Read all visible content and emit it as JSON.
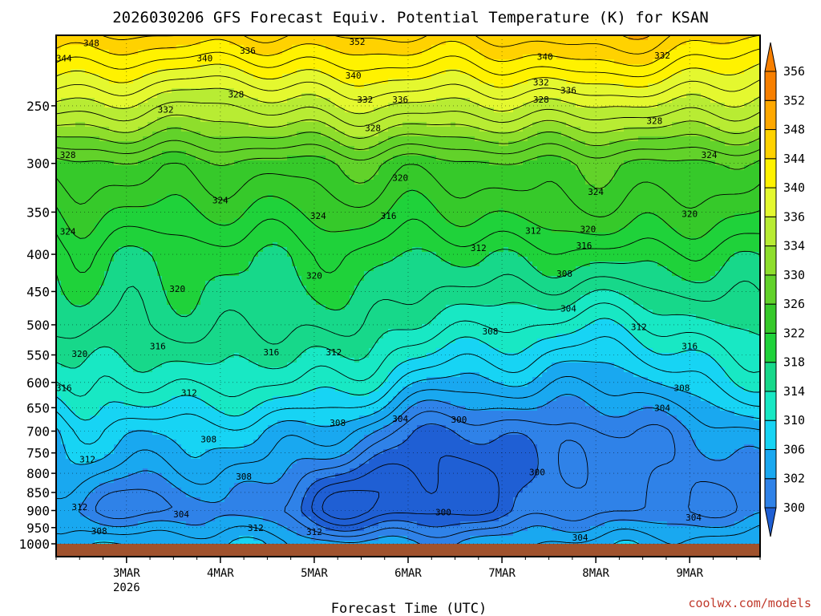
{
  "chart_data": {
    "type": "heatmap",
    "title": "2026030206 GFS Forecast Equiv. Potential Temperature (K) for KSAN",
    "xlabel": "Forecast Time (UTC)",
    "ylabel": "",
    "credit": "coolwx.com/models",
    "x_ticks": [
      {
        "label": "3MAR",
        "sublabel": "2026",
        "x": "2026-03-03T00"
      },
      {
        "label": "4MAR",
        "sublabel": "",
        "x": "2026-03-04T00"
      },
      {
        "label": "5MAR",
        "sublabel": "",
        "x": "2026-03-05T00"
      },
      {
        "label": "6MAR",
        "sublabel": "",
        "x": "2026-03-06T00"
      },
      {
        "label": "7MAR",
        "sublabel": "",
        "x": "2026-03-07T00"
      },
      {
        "label": "8MAR",
        "sublabel": "",
        "x": "2026-03-08T00"
      },
      {
        "label": "9MAR",
        "sublabel": "",
        "x": "2026-03-09T00"
      }
    ],
    "xlim": [
      "2026-03-02T06",
      "2026-03-09T18"
    ],
    "y_ticks": [
      250,
      300,
      350,
      400,
      450,
      500,
      550,
      600,
      650,
      700,
      750,
      800,
      850,
      900,
      950,
      1000
    ],
    "ylim": [
      200,
      1000
    ],
    "y_scale": "log",
    "colorbar": {
      "levels": [
        300,
        302,
        306,
        310,
        314,
        318,
        322,
        326,
        330,
        334,
        336,
        340,
        344,
        348,
        352,
        356
      ],
      "colors": [
        "#1f5fd4",
        "#2f82e8",
        "#19a8f0",
        "#17d4f4",
        "#18e8c4",
        "#17d88a",
        "#1fd23a",
        "#36c92a",
        "#62d22a",
        "#8ede2c",
        "#b8ec33",
        "#e4f82f",
        "#fff200",
        "#ffd200",
        "#ffa800",
        "#f77f00"
      ]
    },
    "contour_labels": [
      {
        "text": "348",
        "x": "2026-03-02T15",
        "p": 205
      },
      {
        "text": "344",
        "x": "2026-03-02T08",
        "p": 215
      },
      {
        "text": "340",
        "x": "2026-03-03T20",
        "p": 215
      },
      {
        "text": "336",
        "x": "2026-03-04T07",
        "p": 210
      },
      {
        "text": "352",
        "x": "2026-03-05T11",
        "p": 204
      },
      {
        "text": "340",
        "x": "2026-03-05T10",
        "p": 227
      },
      {
        "text": "332",
        "x": "2026-03-05T13",
        "p": 245
      },
      {
        "text": "336",
        "x": "2026-03-05T22",
        "p": 245
      },
      {
        "text": "340",
        "x": "2026-03-07T11",
        "p": 214
      },
      {
        "text": "332",
        "x": "2026-03-07T10",
        "p": 232
      },
      {
        "text": "336",
        "x": "2026-03-07T17",
        "p": 238
      },
      {
        "text": "328",
        "x": "2026-03-07T10",
        "p": 245
      },
      {
        "text": "332",
        "x": "2026-03-08T17",
        "p": 213
      },
      {
        "text": "332",
        "x": "2026-03-03T10",
        "p": 253
      },
      {
        "text": "328",
        "x": "2026-03-04T04",
        "p": 241
      },
      {
        "text": "328",
        "x": "2026-03-05T15",
        "p": 268
      },
      {
        "text": "328",
        "x": "2026-03-08T15",
        "p": 262
      },
      {
        "text": "328",
        "x": "2026-03-02T09",
        "p": 292
      },
      {
        "text": "320",
        "x": "2026-03-05T22",
        "p": 314
      },
      {
        "text": "324",
        "x": "2026-03-08T00",
        "p": 328
      },
      {
        "text": "324",
        "x": "2026-03-09T05",
        "p": 292
      },
      {
        "text": "324",
        "x": "2026-03-04T00",
        "p": 337
      },
      {
        "text": "324",
        "x": "2026-03-05T01",
        "p": 354
      },
      {
        "text": "316",
        "x": "2026-03-05T19",
        "p": 354
      },
      {
        "text": "324",
        "x": "2026-03-02T09",
        "p": 372
      },
      {
        "text": "320",
        "x": "2026-03-09T00",
        "p": 352
      },
      {
        "text": "312",
        "x": "2026-03-07T08",
        "p": 371
      },
      {
        "text": "320",
        "x": "2026-03-07T22",
        "p": 369
      },
      {
        "text": "316",
        "x": "2026-03-07T21",
        "p": 389
      },
      {
        "text": "312",
        "x": "2026-03-06T18",
        "p": 392
      },
      {
        "text": "320",
        "x": "2026-03-05T00",
        "p": 428
      },
      {
        "text": "320",
        "x": "2026-03-03T13",
        "p": 446
      },
      {
        "text": "308",
        "x": "2026-03-07T16",
        "p": 425
      },
      {
        "text": "304",
        "x": "2026-03-07T17",
        "p": 475
      },
      {
        "text": "308",
        "x": "2026-03-06T21",
        "p": 510
      },
      {
        "text": "312",
        "x": "2026-03-08T11",
        "p": 503
      },
      {
        "text": "316",
        "x": "2026-03-09T00",
        "p": 535
      },
      {
        "text": "316",
        "x": "2026-03-03T08",
        "p": 535
      },
      {
        "text": "320",
        "x": "2026-03-02T12",
        "p": 548
      },
      {
        "text": "316",
        "x": "2026-03-04T13",
        "p": 545
      },
      {
        "text": "312",
        "x": "2026-03-05T05",
        "p": 545
      },
      {
        "text": "316",
        "x": "2026-03-02T08",
        "p": 610
      },
      {
        "text": "312",
        "x": "2026-03-03T16",
        "p": 620
      },
      {
        "text": "308",
        "x": "2026-03-08T22",
        "p": 610
      },
      {
        "text": "304",
        "x": "2026-03-08T17",
        "p": 650
      },
      {
        "text": "308",
        "x": "2026-03-05T06",
        "p": 682
      },
      {
        "text": "304",
        "x": "2026-03-05T22",
        "p": 673
      },
      {
        "text": "300",
        "x": "2026-03-06T13",
        "p": 675
      },
      {
        "text": "308",
        "x": "2026-03-03T21",
        "p": 718
      },
      {
        "text": "312",
        "x": "2026-03-02T14",
        "p": 765
      },
      {
        "text": "300",
        "x": "2026-03-07T09",
        "p": 797
      },
      {
        "text": "308",
        "x": "2026-03-04T06",
        "p": 808
      },
      {
        "text": "312",
        "x": "2026-03-02T12",
        "p": 890
      },
      {
        "text": "304",
        "x": "2026-03-03T14",
        "p": 910
      },
      {
        "text": "300",
        "x": "2026-03-06T09",
        "p": 905
      },
      {
        "text": "304",
        "x": "2026-03-09T01",
        "p": 920
      },
      {
        "text": "308",
        "x": "2026-03-02T17",
        "p": 960
      },
      {
        "text": "312",
        "x": "2026-03-04T09",
        "p": 950
      },
      {
        "text": "312",
        "x": "2026-03-05T00",
        "p": 963
      },
      {
        "text": "304",
        "x": "2026-03-07T20",
        "p": 980
      }
    ],
    "grid": true,
    "legend": "colorbar-right"
  }
}
